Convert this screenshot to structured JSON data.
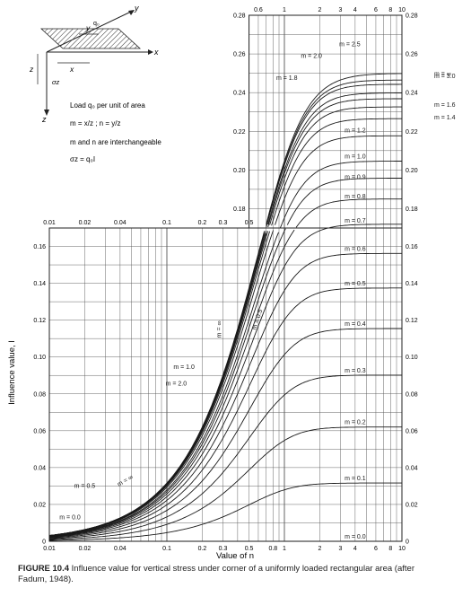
{
  "chart_data": {
    "type": "line",
    "title": "",
    "xlabel": "Value of n",
    "ylabel": "Influence value, I",
    "x_scale": "log",
    "upper_axis": {
      "x_ticks": [
        0.6,
        1,
        2,
        3,
        4,
        6,
        8,
        10
      ],
      "x_tick_labels": [
        "0.6",
        "1",
        "2",
        "3",
        "4",
        "6",
        "8",
        "10"
      ],
      "y_ticks": [
        0.18,
        0.2,
        0.22,
        0.24,
        0.26,
        0.28
      ],
      "y_tick_labels": [
        "0.18",
        "0.20",
        "0.22",
        "0.24",
        "0.26",
        "0.28"
      ],
      "xlim": [
        0.5,
        10
      ],
      "ylim": [
        0.17,
        0.28
      ]
    },
    "lower_axis": {
      "x_ticks": [
        0.01,
        0.02,
        0.04,
        0.1,
        0.2,
        0.3,
        0.5,
        0.8,
        1,
        2,
        3,
        4,
        6,
        8,
        10
      ],
      "x_tick_labels": [
        "0.01",
        "0.02",
        "0.04",
        "0.1",
        "0.2",
        "0.3",
        "0.5",
        "0.8",
        "1",
        "2",
        "3",
        "4",
        "6",
        "8",
        "10"
      ],
      "top_tick_labels": [
        "0.01",
        "0.02",
        "0.04",
        "0.1",
        "0.2",
        "0.3",
        "0.5"
      ],
      "y_ticks": [
        0,
        0.02,
        0.04,
        0.06,
        0.08,
        0.1,
        0.12,
        0.14,
        0.16
      ],
      "y_tick_labels": [
        "0",
        "0.02",
        "0.04",
        "0.06",
        "0.08",
        "0.10",
        "0.12",
        "0.14",
        "0.16"
      ],
      "right_tick_labels": [
        "0",
        "0.02",
        "0.04",
        "0.06",
        "0.08",
        "0.10",
        "0.12",
        "0.14",
        "0.16"
      ],
      "xlim": [
        0.01,
        10
      ],
      "ylim": [
        0,
        0.17
      ]
    },
    "series": [
      {
        "name": "m = 0.0",
        "asymptote": 0.0
      },
      {
        "name": "m = 0.1",
        "asymptote": 0.0316
      },
      {
        "name": "m = 0.2",
        "asymptote": 0.062
      },
      {
        "name": "m = 0.3",
        "asymptote": 0.0901
      },
      {
        "name": "m = 0.4",
        "asymptote": 0.1154
      },
      {
        "name": "m = 0.5",
        "asymptote": 0.1374
      },
      {
        "name": "m = 0.6",
        "asymptote": 0.156
      },
      {
        "name": "m = 0.7",
        "asymptote": 0.1714
      },
      {
        "name": "m = 0.8",
        "asymptote": 0.184
      },
      {
        "name": "m = 0.9",
        "asymptote": 0.194
      },
      {
        "name": "m = 1.0",
        "asymptote": 0.2046
      },
      {
        "name": "m = 1.2",
        "asymptote": 0.218
      },
      {
        "name": "m = 1.4",
        "asymptote": 0.2276
      },
      {
        "name": "m = 1.6",
        "asymptote": 0.234
      },
      {
        "name": "m = 1.8",
        "asymptote": 0.2389
      },
      {
        "name": "m = 2.0",
        "asymptote": 0.2426
      },
      {
        "name": "m = 2.5",
        "asymptote": 0.2476
      },
      {
        "name": "m = 3.0",
        "asymptote": 0.249
      },
      {
        "name": "m = ∞",
        "asymptote": 0.25
      }
    ],
    "curve_labels_right_lower": [
      "m = 0.0",
      "m = 0.1",
      "m = 0.2",
      "m = 0.3",
      "m = 0.4",
      "m = 0.5",
      "m = 0.6"
    ],
    "curve_labels_right_upper": [
      "m = 0.7",
      "m = 0.8",
      "m = 0.9",
      "m = 1.0",
      "m = 1.2"
    ],
    "curve_labels_outside": [
      "m = ∞",
      "m = 3.0",
      "m = 1.6",
      "m = 1.4"
    ],
    "curve_labels_top": [
      "m = 2.5",
      "m = 2.0",
      "m = 1.8"
    ],
    "curve_labels_lower_left": [
      "m = 0.5",
      "m = 0.0"
    ],
    "curve_labels_mid": [
      "m = 1.0",
      "m = 2.0"
    ],
    "curve_labels_rotated": [
      "m = ∞",
      "m = 0.5",
      "m = ∞"
    ]
  },
  "inset": {
    "axis_x": "x",
    "axis_y": "y",
    "axis_z": "z",
    "load_label": "q₀",
    "stress_label": "σz",
    "legend_lines": [
      "Load q₀ per unit of area",
      "m = x/z ; n = y/z",
      "m and n are interchangeable",
      "σz = q₀I"
    ]
  },
  "caption": {
    "figure": "FIGURE 10.4",
    "text": "Influence value for vertical stress under corner of a uniformly loaded rectangular area (after Fadum, 1948)."
  }
}
